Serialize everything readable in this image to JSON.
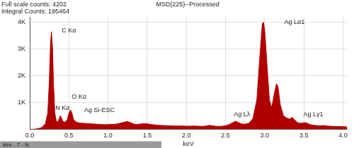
{
  "chart_data": {
    "type": "area",
    "title": "MSD(225)--Processed",
    "subtitle": [
      "Full scale counts: 4202",
      "Integral Counts: 195464"
    ],
    "x_label": "keV",
    "color": "#b00000",
    "grid": true,
    "xlim": [
      0,
      4.05
    ],
    "xticks": [
      {
        "value": 0,
        "label": "0.0"
      },
      0.5,
      {
        "value": 1,
        "label": "1.0"
      },
      1.5,
      {
        "value": 2,
        "label": "2.0"
      },
      2.5,
      {
        "value": 3,
        "label": "3.0"
      },
      3.5,
      {
        "value": 4,
        "label": "4.0"
      }
    ],
    "ylim": [
      0,
      4202
    ],
    "yticks": [
      {
        "value": 1000,
        "label": "1K"
      },
      {
        "value": 2000,
        "label": "2K"
      },
      {
        "value": 3000,
        "label": "3K"
      },
      {
        "value": 4000,
        "label": "4K"
      }
    ],
    "x": [
      0.0,
      0.05,
      0.1,
      0.15,
      0.2,
      0.23,
      0.25,
      0.265,
      0.277,
      0.29,
      0.305,
      0.32,
      0.34,
      0.36,
      0.38,
      0.39,
      0.4,
      0.42,
      0.45,
      0.48,
      0.5,
      0.52,
      0.54,
      0.56,
      0.6,
      0.65,
      0.7,
      0.75,
      0.8,
      0.85,
      0.9,
      0.95,
      1.0,
      1.05,
      1.1,
      1.15,
      1.2,
      1.24,
      1.28,
      1.32,
      1.36,
      1.4,
      1.45,
      1.5,
      1.55,
      1.6,
      1.65,
      1.7,
      1.75,
      1.8,
      1.85,
      1.9,
      1.95,
      2.0,
      2.05,
      2.1,
      2.15,
      2.2,
      2.25,
      2.3,
      2.33,
      2.38,
      2.45,
      2.5,
      2.55,
      2.6,
      2.63,
      2.66,
      2.7,
      2.75,
      2.8,
      2.85,
      2.9,
      2.94,
      2.97,
      2.985,
      3.0,
      3.03,
      3.06,
      3.09,
      3.12,
      3.15,
      3.17,
      3.2,
      3.24,
      3.28,
      3.32,
      3.35,
      3.38,
      3.42,
      3.46,
      3.5,
      3.52,
      3.56,
      3.6,
      3.65,
      3.7,
      3.75,
      3.8,
      3.85,
      3.9,
      3.95,
      4.0,
      4.05
    ],
    "values": [
      0,
      0,
      20,
      60,
      200,
      600,
      1800,
      3200,
      3650,
      3100,
      1600,
      600,
      300,
      280,
      420,
      500,
      460,
      300,
      260,
      350,
      600,
      720,
      600,
      350,
      260,
      230,
      220,
      210,
      200,
      190,
      180,
      170,
      175,
      180,
      190,
      220,
      260,
      290,
      260,
      200,
      180,
      190,
      210,
      200,
      180,
      160,
      150,
      140,
      135,
      130,
      125,
      120,
      120,
      115,
      115,
      120,
      115,
      110,
      120,
      150,
      130,
      110,
      110,
      130,
      180,
      260,
      300,
      260,
      200,
      190,
      230,
      400,
      1100,
      2800,
      3950,
      4000,
      3700,
      2400,
      1100,
      800,
      1300,
      1700,
      1600,
      900,
      500,
      420,
      380,
      450,
      350,
      250,
      220,
      240,
      250,
      200,
      160,
      140,
      130,
      140,
      120,
      110,
      100,
      100,
      95,
      90
    ],
    "annotations": [
      {
        "text": "C Kα",
        "x": 0.5,
        "y": 3700
      },
      {
        "text": "N Kα",
        "x": 0.42,
        "y": 800
      },
      {
        "text": "O Kα",
        "x": 0.63,
        "y": 1200
      },
      {
        "text": "Ag Si-ESC",
        "x": 0.89,
        "y": 700
      },
      {
        "text": "Ag Lλ",
        "x": 2.71,
        "y": 560
      },
      {
        "text": "Ag Lα1",
        "x": 3.38,
        "y": 4000
      },
      {
        "text": "Ag Lγ1",
        "x": 3.62,
        "y": 560
      }
    ]
  },
  "footer": {
    "text": "klm - 7 - N"
  }
}
